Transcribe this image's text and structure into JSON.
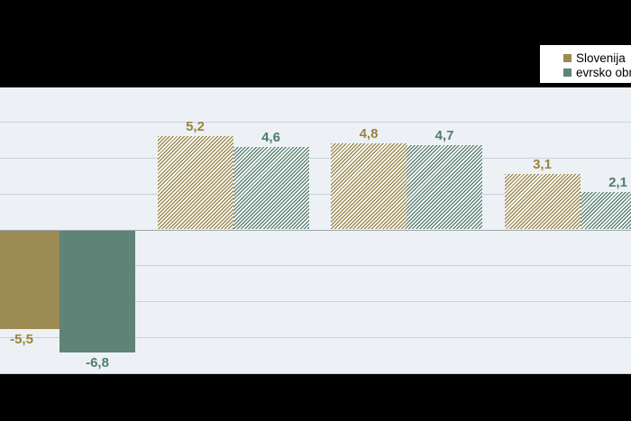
{
  "legend": {
    "items": [
      {
        "label": "Slovenija",
        "color": "#9c8b53"
      },
      {
        "label": "evrsko območje",
        "color": "#5f8376"
      }
    ]
  },
  "chart_data": {
    "type": "bar",
    "categories": [
      "",
      "",
      "",
      ""
    ],
    "series": [
      {
        "name": "Slovenija",
        "values": [
          -5.5,
          5.2,
          4.8,
          3.1
        ],
        "labels": [
          "-5,5",
          "5,2",
          "4,8",
          "3,1"
        ],
        "color": "#9c8b53",
        "label_color": "#97853e",
        "pattern": [
          "solid",
          "hatch",
          "hatch",
          "hatch"
        ]
      },
      {
        "name": "evrsko območje",
        "values": [
          -6.8,
          4.6,
          4.7,
          2.1
        ],
        "labels": [
          "-6,8",
          "4,6",
          "4,7",
          "2,1"
        ],
        "color": "#5f8376",
        "label_color": "#4e7d6e",
        "pattern": [
          "solid",
          "hatch",
          "hatch",
          "hatch"
        ]
      }
    ],
    "title": "",
    "xlabel": "",
    "ylabel": "",
    "ylim": [
      -8,
      8
    ],
    "gridline_step": 2,
    "grid": true,
    "legend_position": "top-right"
  },
  "colors": {
    "crop_background": "#000000",
    "plot_background": "#edf1f5",
    "gridline": "#c8d1d8",
    "zero_line": "#9ea6ac",
    "legend_background": "#ffffff",
    "legend_text": "#000000",
    "hatch_background": "#ffffff"
  }
}
